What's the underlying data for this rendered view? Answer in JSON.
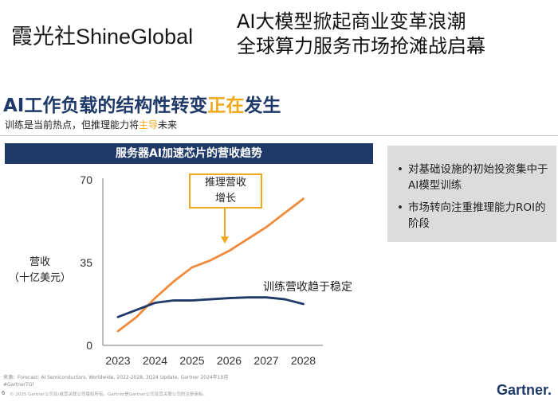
{
  "header": {
    "logo_cn": "霞光社",
    "logo_en": "ShineGlobal",
    "headline_lines": [
      "AI大模型掀起商业变革浪潮",
      "全球算力服务市场抢滩战启幕"
    ]
  },
  "slide": {
    "title_main": "AI工作负载的结构性转变",
    "title_highlight": "正在",
    "title_end": "发生",
    "subtitle_main": "训练是当前热点，但推理能力将",
    "subtitle_highlight": "主导",
    "subtitle_end": "未来",
    "footer": {
      "source": "来源：Forecast: AI Semiconductors, Worldwide, 2022-2028, 3Q24 Update, Gartner 2024年10月",
      "tag": "#GartnerTGI",
      "copyright": "© 2025 Gartner公司及/或其关联公司版权所有。Gartner是Gartner公司及其关联公司的注册商标。",
      "page": "6",
      "brand": "Gartner."
    }
  },
  "chart_data": {
    "type": "line",
    "title": "服务器AI加速芯片的营收趋势",
    "ylabel_line1": "营收",
    "ylabel_line2": "（十亿美元）",
    "x": [
      "2023",
      "2024",
      "2025",
      "2026",
      "2027",
      "2028"
    ],
    "x_points": [
      {
        "pos": 2023.0,
        "label": "2023"
      },
      {
        "pos": 2024.0,
        "label": "2024"
      },
      {
        "pos": 2025.0,
        "label": "2025"
      },
      {
        "pos": 2026.0,
        "label": "2026"
      },
      {
        "pos": 2027.0,
        "label": "2027"
      },
      {
        "pos": 2028.0,
        "label": "2028"
      }
    ],
    "yticks": [
      0,
      35,
      70
    ],
    "ylim": [
      0,
      70
    ],
    "series": [
      {
        "key": "inference",
        "color": "#f08a3c",
        "points": [
          [
            2023.0,
            6
          ],
          [
            2023.5,
            12
          ],
          [
            2024.0,
            20
          ],
          [
            2024.5,
            27
          ],
          [
            2025.0,
            33
          ],
          [
            2025.5,
            36
          ],
          [
            2026.0,
            40
          ],
          [
            2026.5,
            45
          ],
          [
            2027.0,
            50
          ],
          [
            2027.5,
            56
          ],
          [
            2028.0,
            62
          ]
        ]
      },
      {
        "key": "training",
        "color": "#1f3a68",
        "points": [
          [
            2023.0,
            12
          ],
          [
            2023.5,
            15
          ],
          [
            2024.0,
            18
          ],
          [
            2024.5,
            19
          ],
          [
            2025.0,
            19
          ],
          [
            2025.5,
            19.5
          ],
          [
            2026.0,
            20
          ],
          [
            2026.5,
            20.3
          ],
          [
            2027.0,
            20.3
          ],
          [
            2027.5,
            19.5
          ],
          [
            2028.0,
            17.5
          ]
        ]
      }
    ],
    "callout_label_line1": "推理营收",
    "callout_label_line2": "增长",
    "callout_target": {
      "x": 2025.9,
      "y": 42
    },
    "annotation": "训练营收趋于稳定"
  },
  "sidebox": {
    "bullets": [
      {
        "text": "对基础设施的初始投资集中于AI模型训练"
      },
      {
        "text": "市场转向注重推理能力ROI的阶段"
      }
    ]
  }
}
